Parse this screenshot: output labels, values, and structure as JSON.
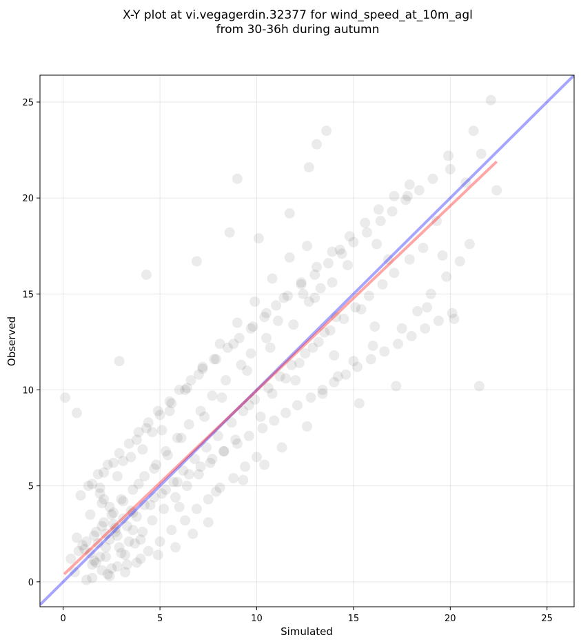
{
  "chart_data": {
    "type": "scatter",
    "title": "X-Y plot at vi.vegagerdin.32377 for wind_speed_at_10m_agl",
    "subtitle": "from 30-36h during autumn",
    "xlabel": "Simulated",
    "ylabel": "Observed",
    "xlim": [
      -1.2,
      26.4
    ],
    "ylim": [
      -1.3,
      26.4
    ],
    "xticks": [
      0,
      5,
      10,
      15,
      20,
      25
    ],
    "yticks": [
      0,
      5,
      10,
      15,
      20,
      25
    ],
    "grid": true,
    "point_color": "#000000",
    "point_alpha": 0.08,
    "series": [
      {
        "x": [
          0.1,
          0.7,
          1.5,
          2.9,
          4.3,
          9.0,
          22.1,
          22.4,
          13.1,
          13.6,
          21.2,
          19.9,
          21.6,
          12.7,
          6.9,
          16.8,
          12.0,
          17.2,
          8.6,
          10.1,
          11.7,
          14.3,
          18.8,
          20.2,
          19.6,
          17.8,
          15.4,
          16.1,
          19.3,
          16.2,
          14.7,
          13.9,
          13.0,
          12.4,
          11.1,
          10.5,
          9.7,
          9.2,
          8.4,
          7.7,
          7.1,
          6.5,
          5.9,
          5.3,
          4.8,
          4.2,
          3.6,
          3.1,
          2.6,
          2.1,
          1.7,
          1.2,
          0.8,
          0.4,
          2.2,
          2.8,
          3.3,
          1.9,
          2.5,
          3.0,
          1.5,
          4.0,
          3.5,
          2.0,
          1.4,
          2.7,
          3.8,
          4.5,
          5.1,
          5.7,
          6.2,
          6.8,
          7.4,
          8.0,
          8.7,
          9.3,
          9.9,
          10.6,
          11.2,
          11.8,
          12.5,
          13.2,
          13.8,
          14.5,
          15.1,
          15.8,
          16.5,
          17.1,
          17.9,
          18.6,
          10.2,
          9.6,
          10.8,
          11.5,
          12.2,
          12.9,
          13.5,
          14.1,
          8.9,
          8.3,
          7.6,
          7.0,
          6.4,
          5.8,
          5.2,
          4.6,
          4.1,
          3.7,
          3.2,
          2.8,
          2.4,
          2.0,
          1.6,
          1.1,
          0.7,
          0.9,
          1.3,
          1.8,
          2.3,
          2.9,
          3.4,
          3.9,
          4.4,
          4.9,
          5.5,
          6.0,
          6.6,
          7.2,
          7.8,
          8.5,
          9.1,
          9.8,
          10.4,
          11.0,
          11.6,
          12.3,
          13.0,
          13.7,
          14.4,
          15.0,
          15.7,
          16.4,
          17.0,
          17.7,
          18.4,
          19.1,
          20.0,
          20.8,
          21.5,
          14.0,
          15.3,
          12.6,
          11.3,
          10.0,
          9.4,
          8.8,
          8.1,
          7.5,
          6.9,
          6.3,
          5.6,
          5.0,
          4.4,
          3.8,
          3.2,
          2.6,
          2.2,
          1.8,
          1.4,
          1.0,
          2.4,
          2.7,
          3.1,
          2.1,
          1.9,
          3.6,
          4.2,
          4.7,
          5.3,
          5.9,
          6.5,
          7.1,
          7.7,
          8.3,
          9.0,
          9.6,
          10.3,
          10.9,
          11.5,
          12.1,
          12.8,
          13.4,
          14.0,
          14.6,
          15.2,
          15.9,
          16.6,
          17.3,
          18.0,
          18.7,
          19.4,
          20.1,
          11.9,
          12.7,
          13.3,
          10.7,
          9.5,
          8.2,
          7.3,
          6.1,
          5.4,
          4.7,
          3.9,
          3.0,
          2.5,
          2.0,
          1.6,
          2.9,
          3.4,
          2.2,
          1.7,
          2.6,
          3.8,
          4.3,
          5.0,
          5.6,
          6.3,
          7.0,
          7.9,
          8.8,
          9.7,
          10.5,
          11.4,
          12.3,
          13.1,
          13.9,
          14.8,
          15.6,
          16.3,
          17.1,
          17.9,
          6.7,
          5.8,
          7.5,
          4.9,
          3.3,
          2.3,
          1.5,
          0.6,
          1.2,
          2.8,
          3.5,
          4.6,
          5.5,
          6.4,
          7.2,
          8.1,
          9.0,
          9.9,
          10.8,
          11.7,
          12.6,
          13.4,
          14.2,
          15.0,
          16.0,
          17.5,
          18.3,
          19.0,
          19.8,
          20.5,
          21.0,
          6.0,
          7.9,
          9.3,
          10.4,
          5.1,
          4.1,
          3.1,
          2.1,
          1.9,
          2.4,
          3.6,
          4.0
        ],
        "y": [
          9.6,
          8.8,
          5.1,
          11.5,
          16.0,
          21.0,
          25.1,
          20.4,
          22.8,
          23.5,
          23.5,
          22.2,
          22.3,
          21.6,
          16.7,
          16.8,
          10.5,
          10.2,
          18.2,
          17.9,
          19.2,
          17.3,
          14.3,
          13.7,
          17.0,
          20.1,
          14.2,
          13.3,
          18.8,
          17.6,
          16.5,
          15.6,
          14.8,
          15.0,
          13.6,
          12.7,
          11.9,
          11.3,
          10.5,
          9.7,
          8.9,
          8.2,
          7.5,
          6.8,
          6.1,
          5.5,
          4.8,
          4.2,
          3.6,
          3.1,
          2.6,
          2.1,
          1.6,
          1.2,
          1.8,
          2.4,
          2.9,
          1.3,
          0.7,
          1.5,
          0.9,
          2.2,
          3.7,
          4.1,
          3.5,
          2.8,
          3.4,
          4.0,
          4.6,
          5.2,
          5.8,
          6.4,
          7.0,
          7.6,
          8.3,
          8.9,
          9.5,
          10.1,
          10.7,
          11.3,
          11.9,
          12.5,
          13.1,
          13.7,
          14.3,
          14.9,
          15.5,
          16.1,
          16.8,
          17.4,
          8.6,
          9.2,
          9.8,
          10.6,
          11.4,
          12.2,
          13.0,
          13.8,
          7.4,
          6.8,
          6.2,
          5.6,
          5.0,
          4.4,
          3.8,
          3.2,
          2.6,
          2.0,
          1.4,
          0.8,
          0.3,
          0.6,
          1.1,
          1.7,
          2.3,
          4.5,
          5.0,
          5.6,
          6.1,
          6.7,
          7.2,
          7.8,
          8.3,
          8.9,
          9.4,
          10.0,
          10.5,
          11.1,
          11.6,
          12.2,
          12.7,
          13.3,
          13.8,
          14.4,
          14.9,
          15.5,
          16.0,
          16.6,
          17.1,
          17.7,
          18.2,
          18.8,
          19.3,
          19.9,
          20.4,
          21.0,
          21.5,
          20.8,
          10.2,
          11.8,
          9.3,
          8.1,
          7.0,
          6.5,
          6.0,
          5.4,
          4.9,
          4.3,
          3.8,
          3.2,
          2.7,
          2.1,
          1.6,
          1.0,
          0.5,
          3.0,
          2.5,
          2.0,
          1.5,
          1.9,
          2.2,
          2.6,
          3.3,
          4.3,
          4.9,
          3.6,
          4.0,
          4.4,
          4.8,
          5.2,
          5.6,
          6.0,
          6.4,
          6.8,
          7.2,
          7.6,
          8.0,
          8.4,
          8.8,
          9.2,
          9.6,
          10.0,
          10.4,
          10.8,
          11.2,
          11.6,
          12.0,
          12.4,
          12.8,
          13.2,
          13.6,
          14.0,
          13.4,
          14.6,
          15.3,
          12.2,
          11.0,
          9.6,
          8.6,
          7.5,
          6.6,
          5.9,
          5.1,
          4.3,
          3.5,
          2.9,
          2.4,
          1.8,
          2.1,
          1.3,
          1.0,
          6.2,
          7.4,
          8.0,
          8.7,
          9.3,
          10.0,
          10.8,
          11.6,
          12.4,
          13.2,
          14.0,
          14.8,
          15.6,
          16.4,
          17.2,
          18.0,
          18.7,
          19.4,
          20.1,
          20.7,
          2.5,
          1.8,
          3.1,
          1.4,
          0.9,
          0.4,
          0.2,
          0.5,
          0.1,
          5.5,
          6.5,
          7.8,
          8.9,
          10.1,
          11.2,
          12.4,
          13.5,
          14.6,
          15.8,
          16.9,
          17.5,
          9.8,
          10.7,
          11.5,
          12.3,
          13.2,
          14.1,
          15.0,
          15.9,
          16.7,
          17.6,
          3.9,
          4.7,
          5.3,
          6.1,
          7.9,
          6.9,
          6.3,
          5.7,
          4.6,
          3.9,
          2.7,
          1.2
        ],
        "markersize_px": 15
      }
    ],
    "lines": [
      {
        "name": "",
        "color": "#0000ff",
        "alpha": 0.35,
        "points": [
          [
            -1.2,
            -1.2
          ],
          [
            26.4,
            26.4
          ]
        ]
      },
      {
        "name": "",
        "color": "#ff0000",
        "alpha": 0.35,
        "points": [
          [
            0.05,
            0.4
          ],
          [
            22.4,
            21.9
          ]
        ]
      }
    ]
  }
}
